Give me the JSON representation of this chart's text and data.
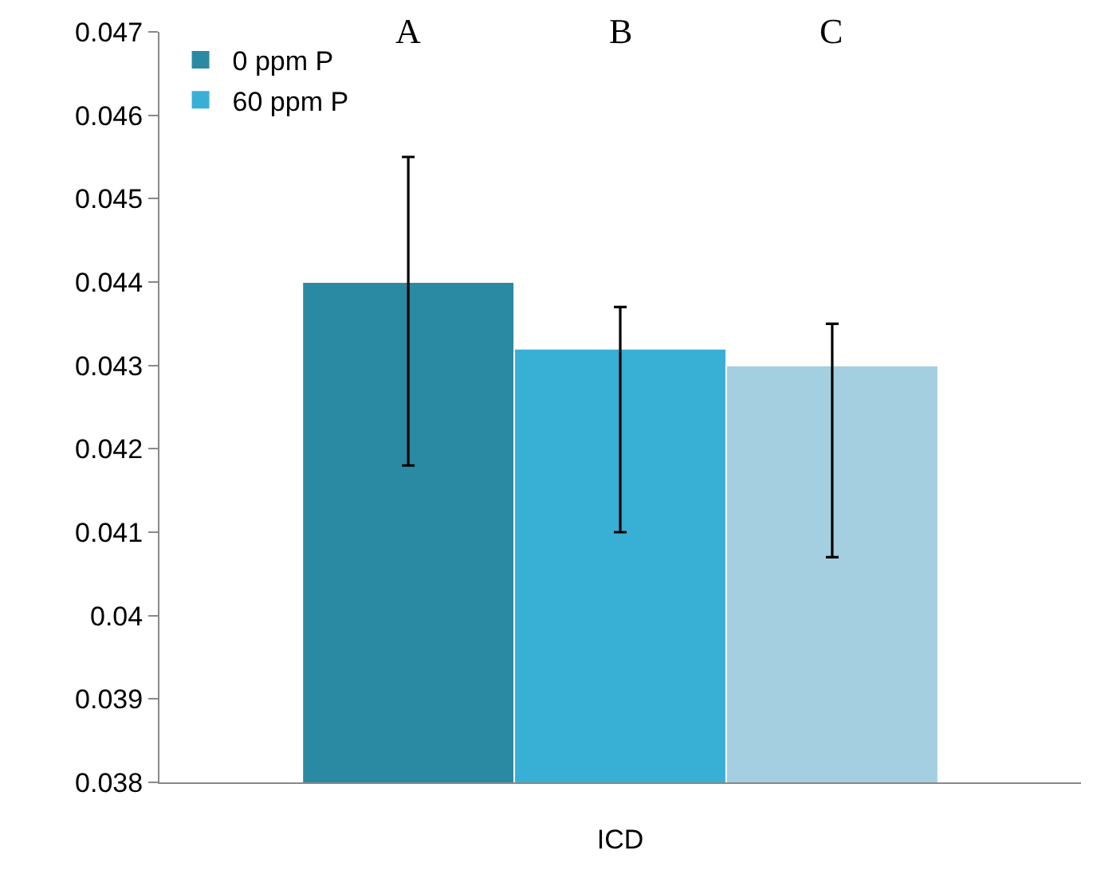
{
  "chart_data": {
    "type": "bar",
    "categories": [
      "ICD"
    ],
    "series": [
      {
        "name": "0 ppm P",
        "color": "#2b8aa3",
        "values": [
          0.044
        ],
        "errors": [
          [
            0.0418,
            0.0455
          ]
        ]
      },
      {
        "name": "60 ppm P",
        "color": "#38b0d6",
        "values": [
          0.0432
        ],
        "errors": [
          [
            0.041,
            0.0437
          ]
        ]
      },
      {
        "color": "#a3cfe0",
        "values": [
          0.043
        ],
        "errors": [
          [
            0.0407,
            0.0435
          ]
        ]
      }
    ],
    "ylim": [
      0.038,
      0.047
    ],
    "yticks": [
      0.038,
      0.039,
      0.04,
      0.041,
      0.042,
      0.043,
      0.044,
      0.045,
      0.046,
      0.047
    ],
    "annotations": [
      "A",
      "B",
      "C"
    ],
    "grid": false,
    "legend": "top left"
  }
}
